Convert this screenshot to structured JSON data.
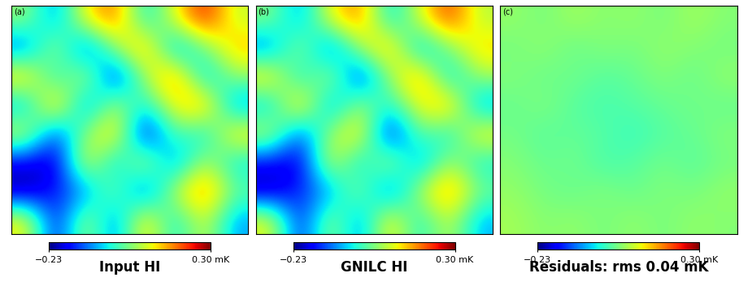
{
  "chart_data": [
    {
      "type": "heatmap",
      "title": "Input HI",
      "annotations": [
        "(a)"
      ],
      "color": "jet",
      "tick_labels": false,
      "cells": [
        [
          0.05,
          -0.1,
          0.12,
          0.2,
          -0.05,
          0.1,
          0.25,
          0.08
        ],
        [
          -0.12,
          0.08,
          -0.15,
          0.05,
          0.18,
          -0.1,
          0.02,
          0.15
        ],
        [
          0.15,
          -0.05,
          0.1,
          -0.18,
          0.06,
          0.2,
          -0.08,
          0.05
        ],
        [
          -0.08,
          0.18,
          -0.12,
          0.08,
          -0.05,
          0.12,
          0.18,
          -0.1
        ],
        [
          0.1,
          -0.15,
          0.05,
          0.15,
          -0.2,
          0.02,
          -0.06,
          0.14
        ],
        [
          -0.18,
          -0.2,
          0.12,
          -0.08,
          0.1,
          -0.12,
          0.08,
          -0.05
        ],
        [
          -0.22,
          -0.15,
          -0.1,
          0.05,
          -0.15,
          0.08,
          0.2,
          0.02
        ],
        [
          0.12,
          -0.18,
          0.08,
          -0.12,
          0.15,
          -0.05,
          0.1,
          -0.08
        ]
      ],
      "colorbar_range": [
        -0.23,
        0.3
      ],
      "colorbar_ticks": [
        {
          "value": -0.23,
          "label": "−0.23"
        },
        {
          "value": 0.3,
          "label": "0.30 mK"
        }
      ]
    },
    {
      "type": "heatmap",
      "title": "GNILC HI",
      "annotations": [
        "(b)"
      ],
      "color": "jet",
      "tick_labels": false,
      "cells": [
        [
          0.04,
          -0.09,
          0.11,
          0.19,
          -0.06,
          0.09,
          0.23,
          0.07
        ],
        [
          -0.11,
          0.07,
          -0.14,
          0.06,
          0.17,
          -0.09,
          0.03,
          0.14
        ],
        [
          0.14,
          -0.06,
          0.09,
          -0.17,
          0.05,
          0.19,
          -0.07,
          0.06
        ],
        [
          -0.07,
          0.17,
          -0.11,
          0.07,
          -0.04,
          0.11,
          0.17,
          -0.09
        ],
        [
          0.09,
          -0.14,
          0.06,
          0.14,
          -0.19,
          0.03,
          -0.05,
          0.13
        ],
        [
          -0.17,
          -0.19,
          0.11,
          -0.07,
          0.09,
          -0.11,
          0.07,
          -0.04
        ],
        [
          -0.21,
          -0.14,
          -0.09,
          0.06,
          -0.14,
          0.07,
          0.19,
          0.03
        ],
        [
          0.11,
          -0.17,
          0.07,
          -0.11,
          0.14,
          -0.04,
          0.09,
          -0.07
        ]
      ],
      "colorbar_range": [
        -0.23,
        0.3
      ],
      "colorbar_ticks": [
        {
          "value": -0.23,
          "label": "−0.23"
        },
        {
          "value": 0.3,
          "label": "0.30 mK"
        }
      ]
    },
    {
      "type": "heatmap",
      "title": "Residuals: rms 0.04 mK",
      "annotations": [
        "(c)"
      ],
      "color": "jet",
      "tick_labels": false,
      "cells": [
        [
          0.05,
          0.03,
          0.06,
          0.04,
          0.05,
          0.03,
          0.06,
          0.04
        ],
        [
          0.03,
          0.05,
          0.02,
          0.04,
          0.03,
          0.05,
          0.04,
          0.03
        ],
        [
          0.04,
          0.02,
          0.03,
          0.01,
          0.02,
          0.04,
          0.02,
          0.05
        ],
        [
          0.02,
          0.04,
          0.01,
          0.0,
          0.01,
          0.02,
          0.03,
          0.02
        ],
        [
          0.03,
          0.01,
          0.02,
          0.01,
          -0.01,
          0.01,
          0.02,
          0.04
        ],
        [
          0.04,
          0.02,
          0.03,
          0.0,
          0.01,
          0.03,
          0.01,
          0.03
        ],
        [
          0.05,
          0.03,
          0.02,
          0.04,
          0.02,
          0.04,
          0.03,
          0.05
        ],
        [
          0.06,
          0.04,
          0.05,
          0.03,
          0.05,
          0.03,
          0.05,
          0.04
        ]
      ],
      "colorbar_range": [
        -0.23,
        0.3
      ],
      "colorbar_ticks": [
        {
          "value": -0.23,
          "label": "−0.23"
        },
        {
          "value": 0.3,
          "label": "0.30 mK"
        }
      ]
    }
  ]
}
